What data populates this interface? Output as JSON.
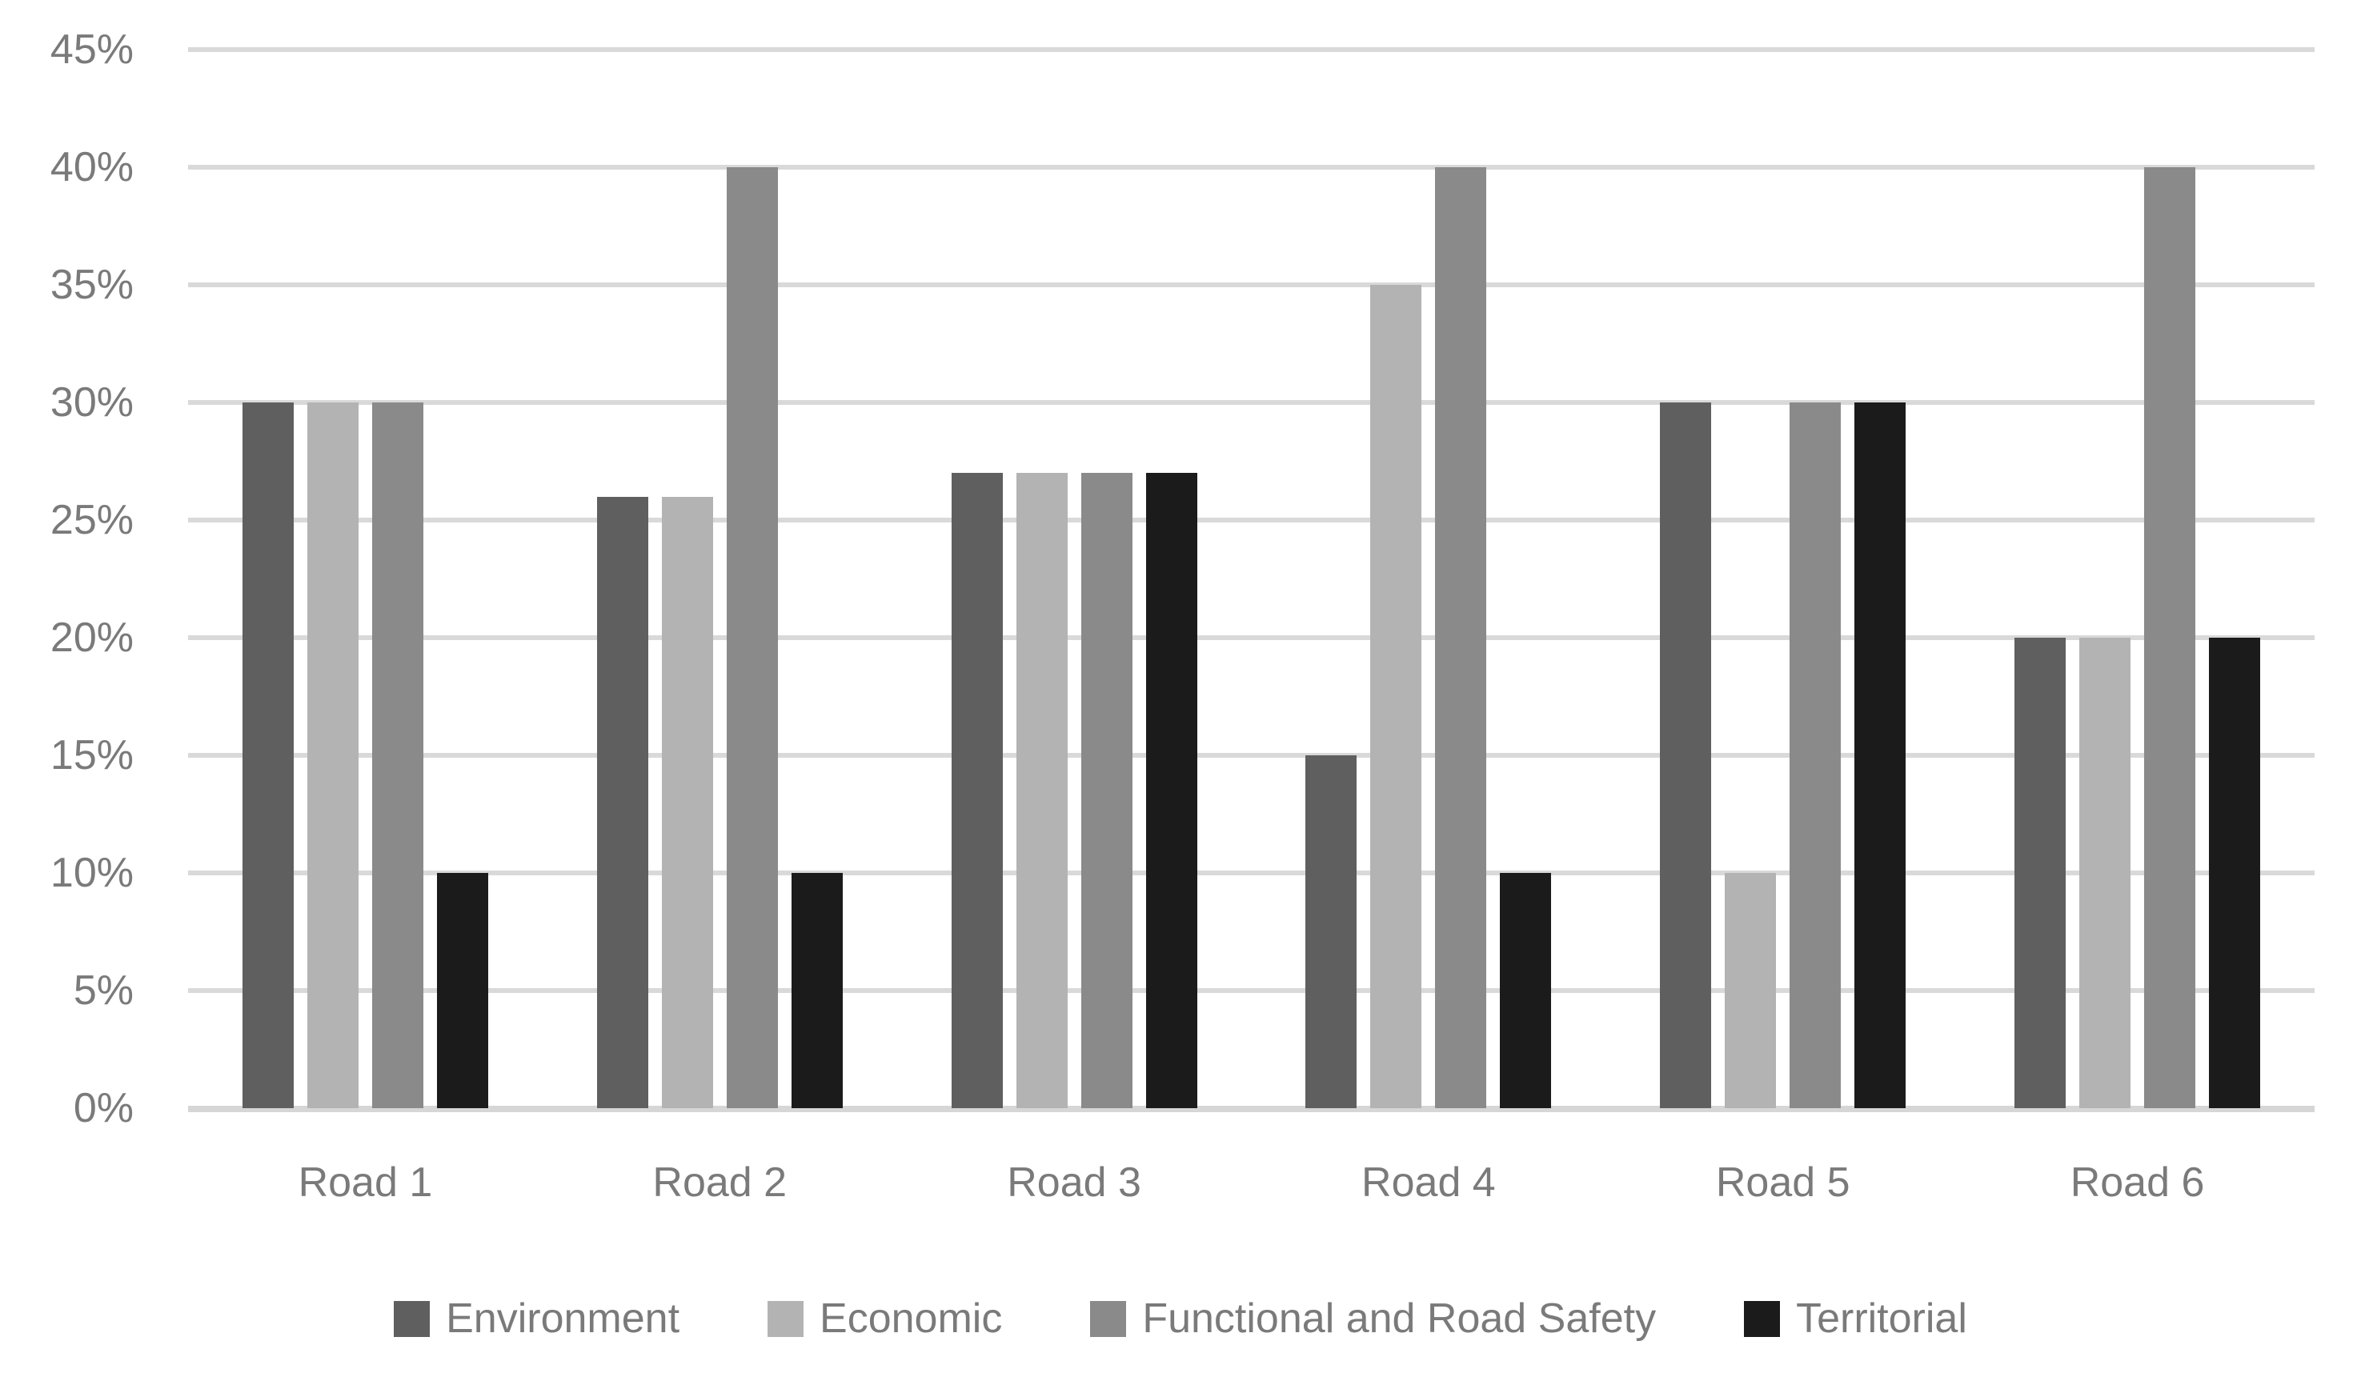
{
  "chart_data": {
    "type": "bar",
    "title": "",
    "categories": [
      "Road 1",
      "Road 2",
      "Road 3",
      "Road 4",
      "Road 5",
      "Road 6"
    ],
    "series": [
      {
        "name": "Environment",
        "color": "#5F5F5F",
        "values": [
          30,
          26,
          27,
          15,
          30,
          20
        ]
      },
      {
        "name": "Economic",
        "color": "#B3B3B3",
        "values": [
          30,
          26,
          27,
          35,
          10,
          20
        ]
      },
      {
        "name": "Functional and Road Safety",
        "color": "#8A8A8A",
        "values": [
          30,
          40,
          27,
          40,
          30,
          40
        ]
      },
      {
        "name": "Territorial",
        "color": "#1B1B1B",
        "values": [
          10,
          10,
          27,
          10,
          30,
          20
        ]
      }
    ],
    "xlabel": "",
    "ylabel": "",
    "y_ticks": [
      "45%",
      "40%",
      "35%",
      "30%",
      "25%",
      "20%",
      "15%",
      "10%",
      "5%",
      "0%"
    ],
    "ylim": [
      0,
      45
    ],
    "y_tick_step": 5,
    "grid": true,
    "legend_position": "bottom",
    "value_format": "percent"
  },
  "colors": {
    "gridline": "#D9D9D9",
    "axis_line": "#D6D6D6",
    "tick_label": "#7A7A7A",
    "category_label": "#7A7A7A",
    "legend_label": "#7A7A7A",
    "background": "#FFFFFF"
  }
}
